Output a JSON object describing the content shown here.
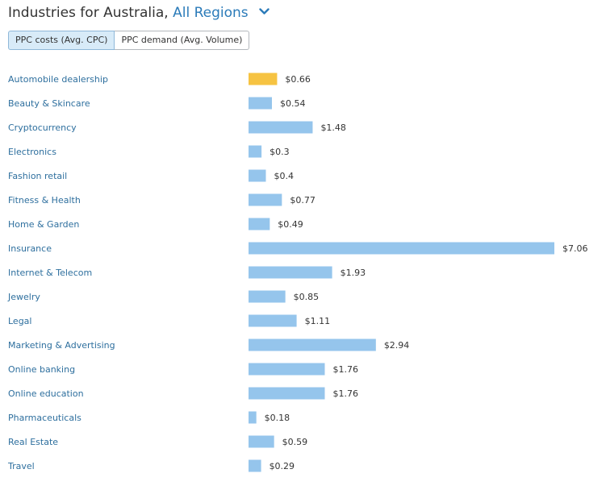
{
  "header": {
    "title": "Industries for Australia,",
    "region": "All Regions"
  },
  "tabs": [
    {
      "label": "PPC costs (Avg. CPC)",
      "active": true
    },
    {
      "label": "PPC demand (Avg. Volume)",
      "active": false
    }
  ],
  "colors": {
    "bar": "#95c5ec",
    "highlight_bar": "#f6c342",
    "category_text": "#2e6f9e",
    "region_text": "#2b7bb9"
  },
  "chart_data": {
    "type": "bar",
    "orientation": "horizontal",
    "categories": [
      "Automobile dealership",
      "Beauty & Skincare",
      "Cryptocurrency",
      "Electronics",
      "Fashion retail",
      "Fitness & Health",
      "Home & Garden",
      "Insurance",
      "Internet & Telecom",
      "Jewelry",
      "Legal",
      "Marketing & Advertising",
      "Online banking",
      "Online education",
      "Pharmaceuticals",
      "Real Estate",
      "Travel"
    ],
    "values": [
      0.66,
      0.54,
      1.48,
      0.3,
      0.4,
      0.77,
      0.49,
      7.06,
      1.93,
      0.85,
      1.11,
      2.94,
      1.76,
      1.76,
      0.18,
      0.59,
      0.29
    ],
    "value_labels": [
      "$0.66",
      "$0.54",
      "$1.48",
      "$0.3",
      "$0.4",
      "$0.77",
      "$0.49",
      "$7.06",
      "$1.93",
      "$0.85",
      "$1.11",
      "$2.94",
      "$1.76",
      "$1.76",
      "$0.18",
      "$0.59",
      "$0.29"
    ],
    "highlight_index": 0,
    "xlim": [
      0,
      7.06
    ],
    "grid": false,
    "legend": "none"
  }
}
